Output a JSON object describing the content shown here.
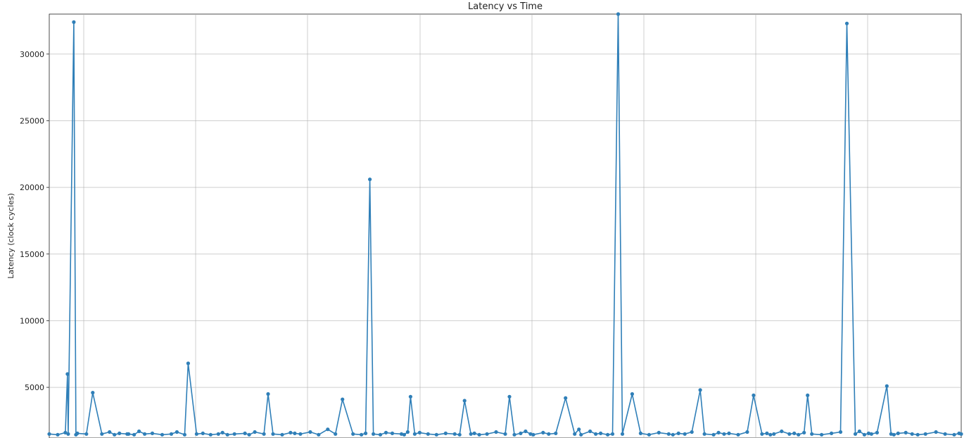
{
  "chart_data": {
    "type": "line",
    "title": "Latency vs Time",
    "xlabel": "",
    "ylabel": "Latency (clock cycles)",
    "ylim": [
      1200,
      33000
    ],
    "y_ticks": [
      5000,
      10000,
      15000,
      20000,
      25000,
      30000
    ],
    "y_tick_labels": [
      "5000",
      "10000",
      "15000",
      "20000",
      "25000",
      "30000"
    ],
    "grid": true,
    "marker": "circle",
    "color": "#2f7fb8",
    "x": [
      0,
      12,
      23,
      26,
      27,
      35,
      38,
      40,
      53,
      62,
      75,
      86,
      93,
      100,
      111,
      113,
      121,
      128,
      136,
      147,
      161,
      174,
      182,
      193,
      198,
      210,
      219,
      230,
      241,
      247,
      254,
      264,
      279,
      285,
      293,
      306,
      312,
      319,
      332,
      344,
      350,
      358,
      372,
      384,
      397,
      408,
      418,
      433,
      445,
      451,
      457,
      462,
      472,
      480,
      489,
      502,
      506,
      511,
      515,
      521,
      528,
      540,
      552,
      565,
      578,
      585,
      592,
      601,
      606,
      613,
      624,
      637,
      650,
      656,
      663,
      672,
      679,
      686,
      690,
      704,
      712,
      722,
      736,
      749,
      755,
      758,
      771,
      779,
      786,
      796,
      803,
      811,
      817,
      831,
      843,
      855,
      869,
      883,
      889,
      897,
      906,
      916,
      928,
      934,
      947,
      954,
      962,
      969,
      982,
      995,
      1004,
      1016,
      1023,
      1028,
      1033,
      1044,
      1055,
      1062,
      1068,
      1076,
      1081,
      1087,
      1101,
      1115,
      1128,
      1137,
      1149,
      1155,
      1162,
      1168,
      1172,
      1180,
      1194,
      1200,
      1204,
      1210,
      1221,
      1230,
      1238,
      1249,
      1264,
      1277,
      1290,
      1297,
      1300
    ],
    "values": [
      1500,
      1450,
      1600,
      6000,
      1500,
      32400,
      1450,
      1550,
      1500,
      4600,
      1500,
      1650,
      1450,
      1550,
      1500,
      1500,
      1450,
      1700,
      1500,
      1550,
      1450,
      1500,
      1650,
      1450,
      6800,
      1500,
      1550,
      1450,
      1500,
      1600,
      1450,
      1500,
      1550,
      1450,
      1650,
      1500,
      4500,
      1500,
      1450,
      1600,
      1550,
      1500,
      1650,
      1450,
      1850,
      1500,
      4100,
      1500,
      1450,
      1550,
      20600,
      1500,
      1450,
      1600,
      1550,
      1500,
      1450,
      1650,
      4300,
      1500,
      1600,
      1500,
      1450,
      1550,
      1500,
      1450,
      4000,
      1500,
      1550,
      1450,
      1500,
      1650,
      1500,
      4300,
      1450,
      1550,
      1700,
      1500,
      1450,
      1600,
      1500,
      1550,
      4200,
      1500,
      1850,
      1450,
      1700,
      1500,
      1550,
      1450,
      1500,
      33000,
      1500,
      4500,
      1550,
      1450,
      1600,
      1500,
      1450,
      1550,
      1500,
      1650,
      4800,
      1500,
      1450,
      1600,
      1500,
      1550,
      1450,
      1650,
      4400,
      1500,
      1550,
      1450,
      1500,
      1700,
      1500,
      1550,
      1450,
      1600,
      4400,
      1500,
      1450,
      1550,
      1650,
      32300,
      1500,
      1700,
      1450,
      1550,
      1500,
      1600,
      5100,
      1500,
      1450,
      1550,
      1600,
      1500,
      1450,
      1500,
      1650,
      1500,
      1450,
      1550,
      1500
    ]
  }
}
